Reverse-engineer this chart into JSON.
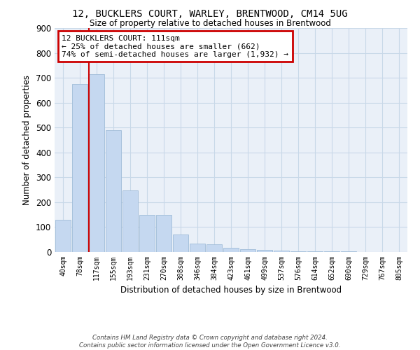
{
  "title1": "12, BUCKLERS COURT, WARLEY, BRENTWOOD, CM14 5UG",
  "title2": "Size of property relative to detached houses in Brentwood",
  "xlabel": "Distribution of detached houses by size in Brentwood",
  "ylabel": "Number of detached properties",
  "footer": "Contains HM Land Registry data © Crown copyright and database right 2024.\nContains public sector information licensed under the Open Government Licence v3.0.",
  "annotation_line1": "12 BUCKLERS COURT: 111sqm",
  "annotation_line2": "← 25% of detached houses are smaller (662)",
  "annotation_line3": "74% of semi-detached houses are larger (1,932) →",
  "bar_color": "#c5d8f0",
  "bar_edge_color": "#a0bcd8",
  "red_line_color": "#cc0000",
  "annotation_box_color": "#cc0000",
  "categories": [
    "40sqm",
    "78sqm",
    "117sqm",
    "155sqm",
    "193sqm",
    "231sqm",
    "270sqm",
    "308sqm",
    "346sqm",
    "384sqm",
    "423sqm",
    "461sqm",
    "499sqm",
    "537sqm",
    "576sqm",
    "614sqm",
    "652sqm",
    "690sqm",
    "729sqm",
    "767sqm",
    "805sqm"
  ],
  "values": [
    130,
    675,
    715,
    490,
    248,
    148,
    148,
    70,
    35,
    30,
    18,
    12,
    8,
    5,
    4,
    3,
    2,
    2,
    1,
    1,
    1
  ],
  "ylim": [
    0,
    900
  ],
  "yticks": [
    0,
    100,
    200,
    300,
    400,
    500,
    600,
    700,
    800,
    900
  ],
  "red_line_x": 1.55,
  "background_color": "#ffffff",
  "grid_color": "#c8d8e8",
  "ax_bg_color": "#eaf0f8"
}
